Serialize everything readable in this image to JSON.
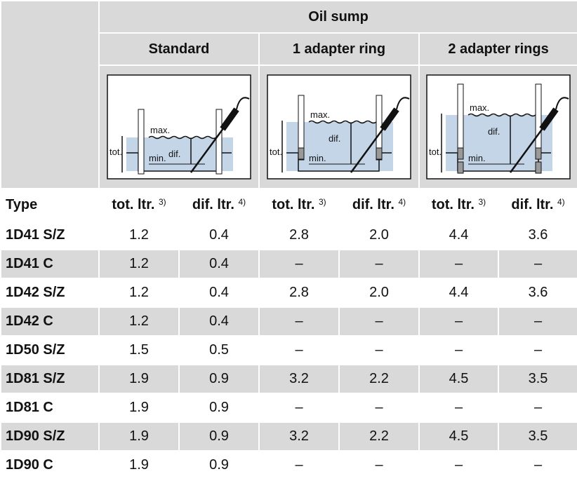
{
  "table": {
    "title": "Oil sump",
    "groups": [
      "Standard",
      "1 adapter ring",
      "2 adapter rings"
    ],
    "diagrams": [
      {
        "max": "max.",
        "dif": "dif.",
        "tot": "tot.",
        "min": "min."
      },
      {
        "max": "max.",
        "dif": "dif.",
        "tot": "tot.",
        "min": "min."
      },
      {
        "max": "max.",
        "dif": "dif.",
        "tot": "tot.",
        "min": "min."
      }
    ],
    "header": [
      {
        "text": "Type"
      },
      {
        "text": "tot. ltr.",
        "note": "3)"
      },
      {
        "text": "dif. ltr.",
        "note": "4)"
      },
      {
        "text": "tot. ltr.",
        "note": "3)"
      },
      {
        "text": "dif. ltr.",
        "note": "4)"
      },
      {
        "text": "tot. ltr.",
        "note": "3)"
      },
      {
        "text": "dif. ltr.",
        "note": "4)"
      }
    ],
    "rows": [
      [
        "1D41 S/Z",
        "1.2",
        "0.4",
        "2.8",
        "2.0",
        "4.4",
        "3.6"
      ],
      [
        "1D41 C",
        "1.2",
        "0.4",
        "–",
        "–",
        "–",
        "–"
      ],
      [
        "1D42 S/Z",
        "1.2",
        "0.4",
        "2.8",
        "2.0",
        "4.4",
        "3.6"
      ],
      [
        "1D42 C",
        "1.2",
        "0.4",
        "–",
        "–",
        "–",
        "–"
      ],
      [
        "1D50 S/Z",
        "1.5",
        "0.5",
        "–",
        "–",
        "–",
        "–"
      ],
      [
        "1D81 S/Z",
        "1.9",
        "0.9",
        "3.2",
        "2.2",
        "4.5",
        "3.5"
      ],
      [
        "1D81 C",
        "1.9",
        "0.9",
        "–",
        "–",
        "–",
        "–"
      ],
      [
        "1D90 S/Z",
        "1.9",
        "0.9",
        "3.2",
        "2.2",
        "4.5",
        "3.5"
      ],
      [
        "1D90 C",
        "1.9",
        "0.9",
        "–",
        "–",
        "–",
        "–"
      ]
    ]
  }
}
